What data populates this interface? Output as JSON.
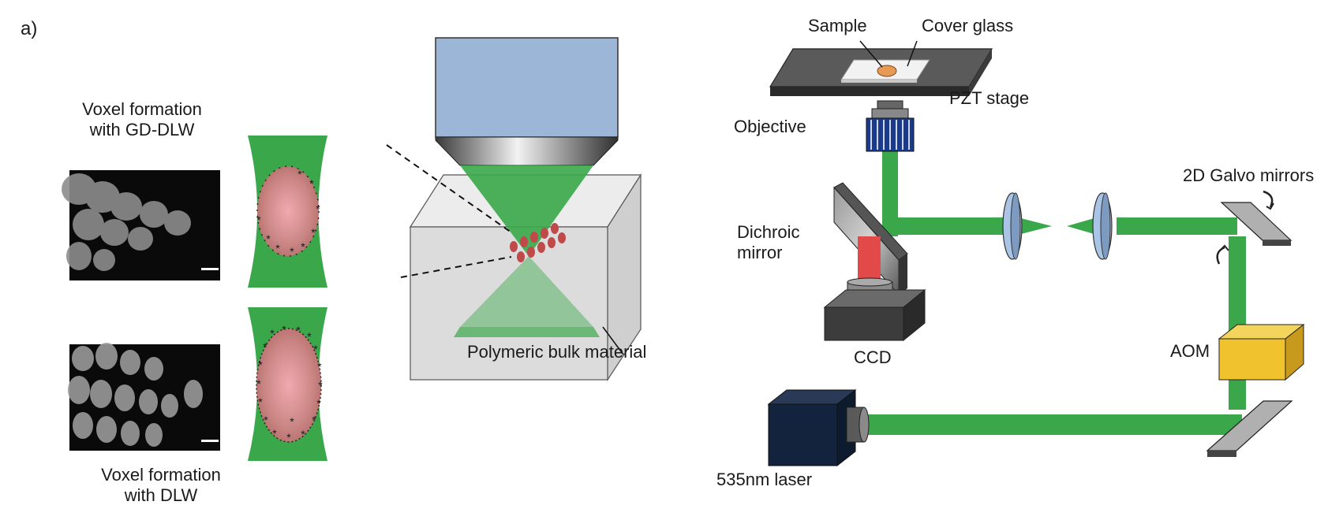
{
  "panel_label": "a)",
  "left": {
    "gd_dlw_caption_line1": "Voxel formation",
    "gd_dlw_caption_line2": "with GD-DLW",
    "dlw_caption_line1": "Voxel formation",
    "dlw_caption_line2": "with DLW",
    "bulk_label": "Polymeric bulk material"
  },
  "setup": {
    "sample": "Sample",
    "cover_glass": "Cover glass",
    "pzt_stage": "PZT stage",
    "objective": "Objective",
    "galvo": "2D Galvo mirrors",
    "dichroic_line1": "Dichroic",
    "dichroic_line2": "mirror",
    "ccd": "CCD",
    "aom": "AOM",
    "laser": "535nm laser"
  },
  "colors": {
    "beam": "#3aa84a",
    "objective_housing": "#9bb6d6",
    "voxel": "#c87d7d",
    "aom": "#f0c32e",
    "lens": "#a9c4e4"
  }
}
